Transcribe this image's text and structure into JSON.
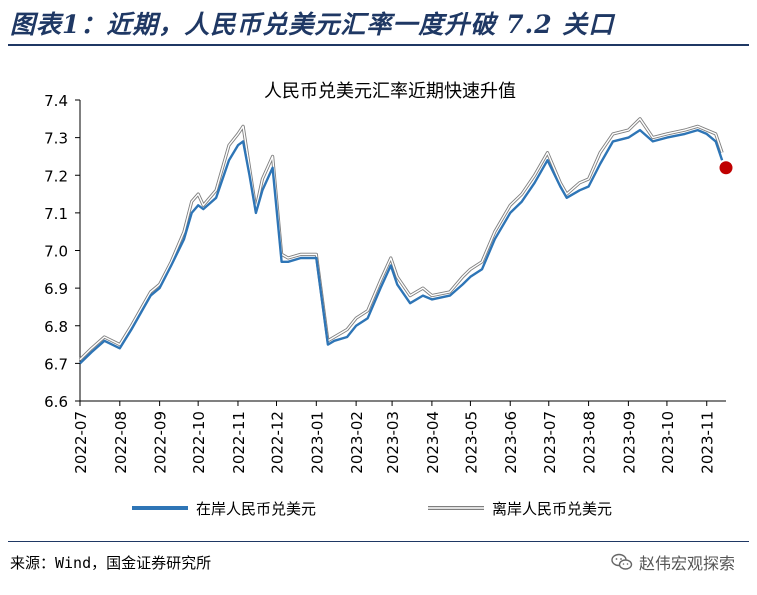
{
  "figure_title": "图表1：近期，人民币兑美元汇率一度升破 7.2 关口",
  "source_text": "来源：Wind，国金证券研究所",
  "brand": {
    "name": "赵伟宏观探索",
    "icon": "wechat-icon"
  },
  "colors": {
    "onshore": "#2e75b6",
    "offshore": "#a6a6a6",
    "marker": "#c00000",
    "title_text": "#1f3864"
  },
  "chart_data": {
    "type": "line",
    "title": "人民币兑美元汇率近期快速升值",
    "xlabel": "",
    "ylabel": "",
    "ylim": [
      6.6,
      7.4
    ],
    "yticks": [
      "6.6",
      "6.7",
      "6.8",
      "6.9",
      "7.0",
      "7.1",
      "7.2",
      "7.3",
      "7.4"
    ],
    "xticks": [
      "2022-07",
      "2022-08",
      "2022-09",
      "2022-10",
      "2022-11",
      "2022-12",
      "2023-01",
      "2023-02",
      "2023-03",
      "2023-04",
      "2023-05",
      "2023-06",
      "2023-07",
      "2023-08",
      "2023-09",
      "2023-10",
      "2023-11"
    ],
    "xlim": [
      "2022-07-01",
      "2023-11-16"
    ],
    "grid": false,
    "legend_position": "bottom",
    "series": [
      {
        "name": "在岸人民币兑美元",
        "x": [
          "2022-07-01",
          "2022-07-10",
          "2022-07-20",
          "2022-08-01",
          "2022-08-10",
          "2022-08-20",
          "2022-08-25",
          "2022-09-01",
          "2022-09-10",
          "2022-09-20",
          "2022-09-26",
          "2022-10-01",
          "2022-10-05",
          "2022-10-15",
          "2022-10-25",
          "2022-11-01",
          "2022-11-05",
          "2022-11-10",
          "2022-11-15",
          "2022-11-20",
          "2022-11-28",
          "2022-12-05",
          "2022-12-10",
          "2022-12-20",
          "2023-01-01",
          "2023-01-10",
          "2023-01-15",
          "2023-01-25",
          "2023-02-01",
          "2023-02-10",
          "2023-02-20",
          "2023-02-28",
          "2023-03-05",
          "2023-03-15",
          "2023-03-25",
          "2023-04-01",
          "2023-04-15",
          "2023-04-25",
          "2023-05-01",
          "2023-05-10",
          "2023-05-20",
          "2023-06-01",
          "2023-06-10",
          "2023-06-20",
          "2023-06-30",
          "2023-07-10",
          "2023-07-15",
          "2023-07-25",
          "2023-08-01",
          "2023-08-10",
          "2023-08-20",
          "2023-09-01",
          "2023-09-10",
          "2023-09-20",
          "2023-10-01",
          "2023-10-15",
          "2023-10-25",
          "2023-11-01",
          "2023-11-08",
          "2023-11-13"
        ],
        "values": [
          6.7,
          6.73,
          6.76,
          6.74,
          6.79,
          6.85,
          6.88,
          6.9,
          6.96,
          7.03,
          7.1,
          7.12,
          7.11,
          7.14,
          7.24,
          7.28,
          7.29,
          7.2,
          7.1,
          7.16,
          7.22,
          6.97,
          6.97,
          6.98,
          6.98,
          6.75,
          6.76,
          6.77,
          6.8,
          6.82,
          6.9,
          6.96,
          6.91,
          6.86,
          6.88,
          6.87,
          6.88,
          6.91,
          6.93,
          6.95,
          7.03,
          7.1,
          7.13,
          7.18,
          7.24,
          7.17,
          7.14,
          7.16,
          7.17,
          7.23,
          7.29,
          7.3,
          7.32,
          7.29,
          7.3,
          7.31,
          7.32,
          7.31,
          7.29,
          7.24
        ]
      },
      {
        "name": "离岸人民币兑美元",
        "x": [
          "2022-07-01",
          "2022-07-10",
          "2022-07-20",
          "2022-08-01",
          "2022-08-10",
          "2022-08-20",
          "2022-08-25",
          "2022-09-01",
          "2022-09-10",
          "2022-09-20",
          "2022-09-26",
          "2022-10-01",
          "2022-10-05",
          "2022-10-15",
          "2022-10-25",
          "2022-11-01",
          "2022-11-05",
          "2022-11-10",
          "2022-11-15",
          "2022-11-20",
          "2022-11-28",
          "2022-12-05",
          "2022-12-10",
          "2022-12-20",
          "2023-01-01",
          "2023-01-10",
          "2023-01-15",
          "2023-01-25",
          "2023-02-01",
          "2023-02-10",
          "2023-02-20",
          "2023-02-28",
          "2023-03-05",
          "2023-03-15",
          "2023-03-25",
          "2023-04-01",
          "2023-04-15",
          "2023-04-25",
          "2023-05-01",
          "2023-05-10",
          "2023-05-20",
          "2023-06-01",
          "2023-06-10",
          "2023-06-20",
          "2023-06-30",
          "2023-07-10",
          "2023-07-15",
          "2023-07-25",
          "2023-08-01",
          "2023-08-10",
          "2023-08-20",
          "2023-09-01",
          "2023-09-10",
          "2023-09-20",
          "2023-10-01",
          "2023-10-15",
          "2023-10-25",
          "2023-11-01",
          "2023-11-08",
          "2023-11-13"
        ],
        "values": [
          6.71,
          6.74,
          6.77,
          6.75,
          6.8,
          6.86,
          6.89,
          6.91,
          6.97,
          7.05,
          7.13,
          7.15,
          7.12,
          7.16,
          7.28,
          7.31,
          7.33,
          7.22,
          7.11,
          7.19,
          7.25,
          6.99,
          6.98,
          6.99,
          6.99,
          6.76,
          6.77,
          6.79,
          6.82,
          6.84,
          6.92,
          6.98,
          6.93,
          6.88,
          6.9,
          6.88,
          6.89,
          6.93,
          6.95,
          6.97,
          7.05,
          7.12,
          7.15,
          7.2,
          7.26,
          7.18,
          7.15,
          7.18,
          7.19,
          7.26,
          7.31,
          7.32,
          7.35,
          7.3,
          7.31,
          7.32,
          7.33,
          7.32,
          7.31,
          7.26
        ]
      }
    ],
    "highlight_point": {
      "x": "2023-11-16",
      "y": 7.22
    }
  }
}
